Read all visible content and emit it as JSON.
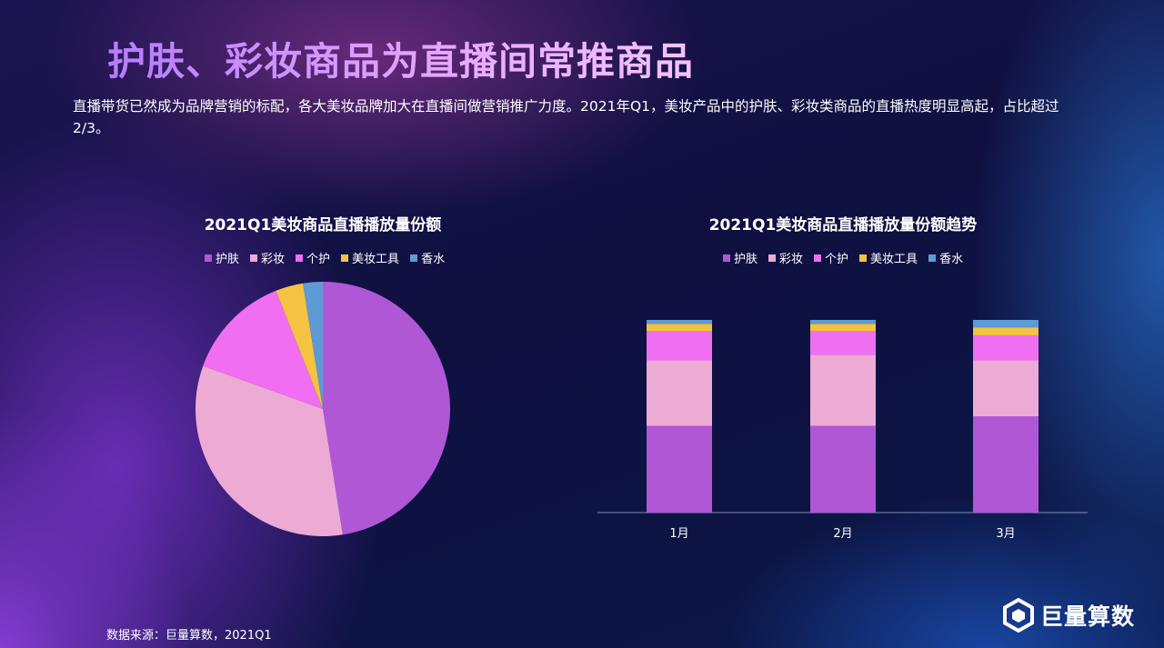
{
  "page": {
    "title": "护肤、彩妆商品为直播间常推商品",
    "description": "直播带货已然成为品牌营销的标配，各大美妆品牌加大在直播间做营销推广力度。2021年Q1，美妆产品中的护肤、彩妆类商品的直播热度明显高起，占比超过2/3。",
    "source": "数据来源：巨量算数，2021Q1",
    "brand": "巨量算数"
  },
  "chart_data": [
    {
      "type": "pie",
      "title": "2021Q1美妆商品直播播放量份额",
      "legend_position": "top",
      "categories": [
        "护肤",
        "彩妆",
        "个护",
        "美妆工具",
        "香水"
      ],
      "values": [
        47.5,
        33.0,
        13.5,
        3.5,
        2.5
      ],
      "colors": [
        "#b057d6",
        "#ecaad4",
        "#f06ef2",
        "#f5c242",
        "#5e9bd4"
      ]
    },
    {
      "type": "bar",
      "stacked": true,
      "title": "2021Q1美妆商品直播播放量份额趋势",
      "legend_position": "top",
      "categories": [
        "1月",
        "2月",
        "3月"
      ],
      "ylim": [
        0,
        100
      ],
      "grid": false,
      "series": [
        {
          "name": "护肤",
          "color": "#b057d6",
          "values": [
            45,
            45,
            50
          ]
        },
        {
          "name": "彩妆",
          "color": "#ecaad4",
          "values": [
            34,
            37,
            29
          ]
        },
        {
          "name": "个护",
          "color": "#f06ef2",
          "values": [
            15,
            12,
            13
          ]
        },
        {
          "name": "美妆工具",
          "color": "#f5c242",
          "values": [
            4,
            4,
            4
          ]
        },
        {
          "name": "香水",
          "color": "#5e9bd4",
          "values": [
            2,
            2,
            4
          ]
        }
      ]
    }
  ]
}
